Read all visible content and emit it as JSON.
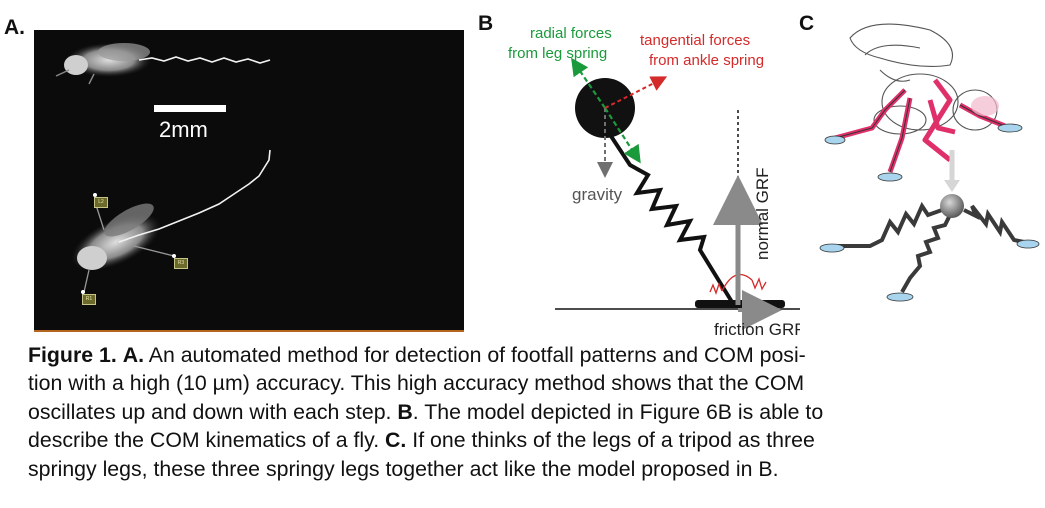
{
  "panels": {
    "a_label": "A.",
    "b_label": "B",
    "c_label": "C"
  },
  "panel_a": {
    "scale_label": "2mm",
    "tags": [
      "L2",
      "R3",
      "R1"
    ]
  },
  "panel_b": {
    "radial_forces": [
      "radial forces",
      "from leg spring"
    ],
    "tangential_forces": [
      "tangential forces",
      "from ankle spring"
    ],
    "gravity": "gravity",
    "normal_grf": "normal GRF",
    "friction_grf": "friction GRF"
  },
  "caption": {
    "fig_label": "Figure 1.",
    "a_marker": "A.",
    "line1_rest": " An automated method for detection of footfall patterns and COM posi-",
    "line2": "tion with a high (10 µm) accuracy. This high accuracy method shows that the COM",
    "line3_start": "oscillates up and down with each step. ",
    "b_marker": "B",
    "line3_end": ". The model depicted in Figure 6B is able to",
    "line4_start": "describe the COM kinematics of a fly. ",
    "c_marker": "C.",
    "line4_end": " If one thinks of the legs of a tripod as three",
    "line5": "springy legs, these three springy legs together act like the model proposed in B."
  },
  "colors": {
    "radial": "#1a9a3a",
    "tangential": "#d42a2a",
    "gravity_arrow": "#707070",
    "grf_arrow": "#8a8a8a",
    "fly_legs": "#e0306a",
    "foot_pad": "#a8d4ee"
  }
}
